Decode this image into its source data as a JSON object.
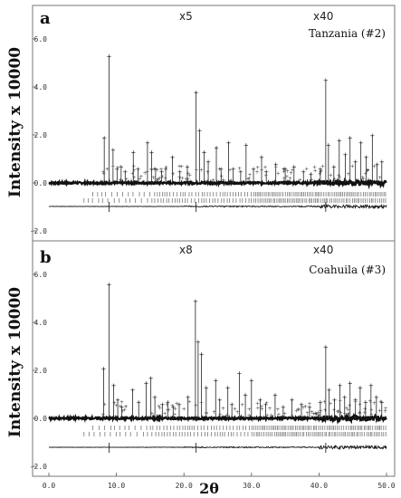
{
  "figure": {
    "y_axis_label": "Intensity x 10000",
    "x_axis_label": "2θ"
  },
  "chart_data": [
    {
      "type": "scatter",
      "panel_label": "a",
      "sample_label": "Tanzania (#2)",
      "scale_annotations": [
        "x5",
        "x40"
      ],
      "ylabel": "Intensity x 10000",
      "xlim": [
        0,
        50
      ],
      "ylim": [
        -2.0,
        7.0
      ],
      "y_ticks": [
        "-2.0",
        "0.0",
        "2.0",
        "4.0",
        "6.0"
      ],
      "baseline": 0.0,
      "peaks": [
        {
          "x": 8.2,
          "y": 1.9
        },
        {
          "x": 8.9,
          "y": 5.3
        },
        {
          "x": 9.5,
          "y": 1.4
        },
        {
          "x": 10.1,
          "y": 0.6
        },
        {
          "x": 10.7,
          "y": 0.7
        },
        {
          "x": 11.3,
          "y": 0.5
        },
        {
          "x": 12.5,
          "y": 1.3
        },
        {
          "x": 13.2,
          "y": 0.6
        },
        {
          "x": 14.6,
          "y": 1.7
        },
        {
          "x": 15.2,
          "y": 1.3
        },
        {
          "x": 15.8,
          "y": 0.6
        },
        {
          "x": 16.7,
          "y": 0.5
        },
        {
          "x": 17.3,
          "y": 0.6
        },
        {
          "x": 18.3,
          "y": 1.1
        },
        {
          "x": 19.4,
          "y": 0.5
        },
        {
          "x": 20.5,
          "y": 0.7
        },
        {
          "x": 21.8,
          "y": 3.8
        },
        {
          "x": 22.3,
          "y": 2.2
        },
        {
          "x": 23.0,
          "y": 1.3
        },
        {
          "x": 23.6,
          "y": 0.9
        },
        {
          "x": 24.8,
          "y": 1.5
        },
        {
          "x": 25.5,
          "y": 0.6
        },
        {
          "x": 26.6,
          "y": 1.7
        },
        {
          "x": 27.3,
          "y": 0.6
        },
        {
          "x": 28.4,
          "y": 0.5
        },
        {
          "x": 29.2,
          "y": 1.6
        },
        {
          "x": 30.3,
          "y": 0.6
        },
        {
          "x": 31.5,
          "y": 1.1
        },
        {
          "x": 32.2,
          "y": 0.5
        },
        {
          "x": 33.6,
          "y": 0.8
        },
        {
          "x": 35.0,
          "y": 0.6
        },
        {
          "x": 36.3,
          "y": 0.7
        },
        {
          "x": 37.7,
          "y": 0.5
        },
        {
          "x": 38.8,
          "y": 0.4
        },
        {
          "x": 40.2,
          "y": 0.6
        },
        {
          "x": 41.0,
          "y": 4.3
        },
        {
          "x": 41.4,
          "y": 1.6
        },
        {
          "x": 42.2,
          "y": 0.7
        },
        {
          "x": 43.0,
          "y": 1.8
        },
        {
          "x": 43.9,
          "y": 1.2
        },
        {
          "x": 44.6,
          "y": 1.9
        },
        {
          "x": 45.4,
          "y": 0.9
        },
        {
          "x": 46.2,
          "y": 1.7
        },
        {
          "x": 47.0,
          "y": 1.1
        },
        {
          "x": 47.9,
          "y": 2.0
        },
        {
          "x": 48.6,
          "y": 0.8
        },
        {
          "x": 49.3,
          "y": 0.9
        }
      ]
    },
    {
      "type": "scatter",
      "panel_label": "b",
      "sample_label": "Coahuila (#3)",
      "scale_annotations": [
        "x8",
        "x40"
      ],
      "ylabel": "Intensity x 10000",
      "xlabel": "2θ",
      "xlim": [
        0,
        50
      ],
      "ylim": [
        -2.0,
        7.0
      ],
      "x_ticks": [
        "0.0",
        "10.0",
        "20.0",
        "30.0",
        "40.0",
        "50.0"
      ],
      "y_ticks": [
        "-2.0",
        "0.0",
        "2.0",
        "4.0",
        "6.0"
      ],
      "baseline": 0.0,
      "peaks": [
        {
          "x": 8.1,
          "y": 2.1
        },
        {
          "x": 8.9,
          "y": 5.6
        },
        {
          "x": 9.6,
          "y": 1.4
        },
        {
          "x": 10.2,
          "y": 0.8
        },
        {
          "x": 10.8,
          "y": 0.5
        },
        {
          "x": 12.4,
          "y": 1.2
        },
        {
          "x": 13.3,
          "y": 0.7
        },
        {
          "x": 14.4,
          "y": 1.5
        },
        {
          "x": 15.1,
          "y": 1.7
        },
        {
          "x": 15.7,
          "y": 0.9
        },
        {
          "x": 16.8,
          "y": 0.6
        },
        {
          "x": 17.6,
          "y": 0.7
        },
        {
          "x": 18.4,
          "y": 0.5
        },
        {
          "x": 19.3,
          "y": 0.6
        },
        {
          "x": 20.6,
          "y": 0.9
        },
        {
          "x": 21.7,
          "y": 4.9
        },
        {
          "x": 22.1,
          "y": 3.2
        },
        {
          "x": 22.6,
          "y": 2.7
        },
        {
          "x": 23.3,
          "y": 1.3
        },
        {
          "x": 24.7,
          "y": 1.6
        },
        {
          "x": 25.3,
          "y": 0.8
        },
        {
          "x": 26.5,
          "y": 1.3
        },
        {
          "x": 27.1,
          "y": 0.6
        },
        {
          "x": 28.2,
          "y": 1.9
        },
        {
          "x": 29.1,
          "y": 1.0
        },
        {
          "x": 30.0,
          "y": 1.6
        },
        {
          "x": 31.3,
          "y": 0.8
        },
        {
          "x": 32.1,
          "y": 0.6
        },
        {
          "x": 33.5,
          "y": 1.0
        },
        {
          "x": 34.7,
          "y": 0.5
        },
        {
          "x": 36.0,
          "y": 0.8
        },
        {
          "x": 37.4,
          "y": 0.6
        },
        {
          "x": 38.6,
          "y": 0.5
        },
        {
          "x": 40.2,
          "y": 0.7
        },
        {
          "x": 41.0,
          "y": 3.0
        },
        {
          "x": 41.5,
          "y": 1.2
        },
        {
          "x": 42.3,
          "y": 0.8
        },
        {
          "x": 43.1,
          "y": 1.4
        },
        {
          "x": 43.8,
          "y": 0.9
        },
        {
          "x": 44.6,
          "y": 1.5
        },
        {
          "x": 45.4,
          "y": 0.8
        },
        {
          "x": 46.1,
          "y": 1.3
        },
        {
          "x": 46.9,
          "y": 0.7
        },
        {
          "x": 47.7,
          "y": 1.4
        },
        {
          "x": 48.5,
          "y": 0.9
        },
        {
          "x": 49.3,
          "y": 0.7
        }
      ]
    }
  ]
}
